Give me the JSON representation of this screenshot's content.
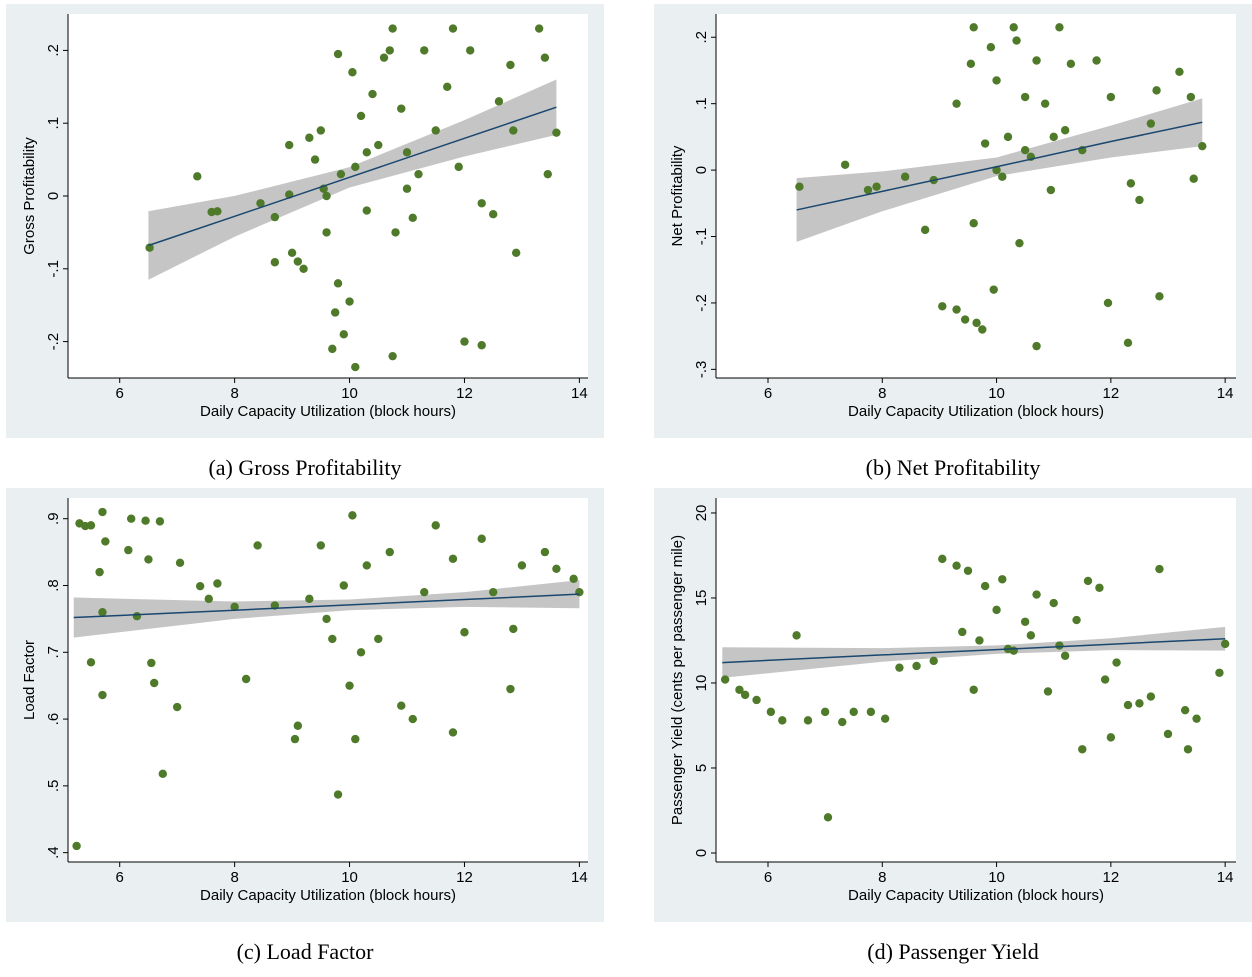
{
  "chart_data": [
    {
      "type": "scatter",
      "caption": "(a) Gross Profitability",
      "x_label": "Daily Capacity Utilization (block hours)",
      "y_label": "Gross Profitability",
      "xlim": [
        5.1,
        14.15
      ],
      "xticks": [
        6,
        8,
        10,
        12,
        14
      ],
      "ylim": [
        -0.25,
        0.25
      ],
      "yticks": [
        {
          "value": -0.2,
          "label": "-.2"
        },
        {
          "value": -0.1,
          "label": "-.1"
        },
        0,
        {
          "value": 0.1,
          "label": ".1"
        },
        {
          "value": 0.2,
          "label": ".2"
        }
      ],
      "series": [
        {
          "color": "#4e7a2a",
          "x": [
            6.52,
            7.35,
            7.6,
            7.7,
            8.45,
            8.7,
            8.7,
            8.95,
            8.95,
            9.0,
            9.1,
            9.2,
            9.3,
            9.4,
            9.5,
            9.55,
            9.6,
            9.7,
            9.75,
            9.8,
            9.8,
            9.85,
            9.9,
            10.0,
            10.05,
            10.1,
            10.1,
            10.2,
            10.3,
            10.4,
            10.5,
            10.6,
            10.7,
            10.8,
            10.75,
            10.9,
            11.0,
            11.1,
            11.2,
            11.3,
            11.5,
            11.7,
            11.8,
            11.9,
            12.0,
            12.1,
            12.3,
            12.3,
            12.5,
            12.6,
            12.8,
            12.85,
            12.9,
            13.3,
            13.4,
            13.45,
            13.6,
            10.75,
            9.6,
            10.3,
            11.0
          ],
          "values": [
            -0.071,
            0.027,
            -0.022,
            -0.021,
            -0.01,
            -0.029,
            -0.091,
            0.07,
            0.002,
            -0.078,
            -0.09,
            -0.1,
            0.08,
            0.05,
            0.09,
            0.01,
            -0.05,
            -0.21,
            -0.16,
            -0.12,
            0.195,
            0.03,
            -0.19,
            -0.145,
            0.17,
            -0.235,
            0.04,
            0.11,
            -0.02,
            0.14,
            0.07,
            0.19,
            0.2,
            -0.05,
            -0.22,
            0.12,
            0.06,
            -0.03,
            0.03,
            0.2,
            0.09,
            0.15,
            0.23,
            0.04,
            -0.2,
            0.2,
            -0.01,
            -0.205,
            -0.025,
            0.13,
            0.18,
            0.09,
            -0.078,
            0.23,
            0.19,
            0.03,
            0.087,
            0.23,
            0.0,
            0.06,
            0.01
          ]
        }
      ],
      "fit": {
        "color": "#1a476f",
        "band_color": "#bfbfbf",
        "x": [
          6.5,
          8,
          10,
          12,
          13.6
        ],
        "values": [
          -0.068,
          -0.0279,
          0.0257,
          0.0792,
          0.122
        ],
        "lower": [
          -0.115,
          -0.0559,
          0.0117,
          0.0542,
          0.084
        ],
        "upper": [
          -0.021,
          0.0001,
          0.0397,
          0.1042,
          0.16
        ]
      }
    },
    {
      "type": "scatter",
      "caption": "(b) Net Profitability",
      "x_label": "Daily Capacity Utilization (block hours)",
      "y_label": "Net Profitability",
      "xlim": [
        5.09,
        14.19
      ],
      "xticks": [
        6,
        8,
        10,
        12,
        14
      ],
      "ylim": [
        -0.313,
        0.235
      ],
      "yticks": [
        {
          "value": -0.3,
          "label": "-.3"
        },
        {
          "value": -0.2,
          "label": "-.2"
        },
        {
          "value": -0.1,
          "label": "-.1"
        },
        0,
        {
          "value": 0.1,
          "label": ".1"
        },
        {
          "value": 0.2,
          "label": ".2"
        }
      ],
      "series": [
        {
          "color": "#4e7a2a",
          "x": [
            6.55,
            7.35,
            7.75,
            7.9,
            8.4,
            8.75,
            8.9,
            9.05,
            9.3,
            9.3,
            9.45,
            9.55,
            9.6,
            9.65,
            9.75,
            9.8,
            9.9,
            9.95,
            10.0,
            10.1,
            10.2,
            10.3,
            10.35,
            10.4,
            10.5,
            10.6,
            10.7,
            10.7,
            10.85,
            10.95,
            11.1,
            11.2,
            11.3,
            11.5,
            11.75,
            11.95,
            12.0,
            12.3,
            12.35,
            12.5,
            12.7,
            12.85,
            12.8,
            13.2,
            13.4,
            13.45,
            13.6,
            10.0,
            10.5,
            11.0,
            9.6
          ],
          "values": [
            -0.025,
            0.008,
            -0.03,
            -0.025,
            -0.01,
            -0.09,
            -0.015,
            -0.205,
            -0.21,
            0.1,
            -0.225,
            0.16,
            0.215,
            -0.23,
            -0.24,
            0.04,
            0.185,
            -0.18,
            0.135,
            -0.01,
            0.05,
            0.215,
            0.195,
            -0.11,
            0.11,
            0.02,
            -0.265,
            0.165,
            0.1,
            -0.03,
            0.215,
            0.06,
            0.16,
            0.03,
            0.165,
            -0.2,
            0.11,
            -0.26,
            -0.02,
            -0.045,
            0.07,
            -0.19,
            0.12,
            0.148,
            0.11,
            -0.013,
            0.036,
            0.0,
            0.03,
            0.05,
            -0.08
          ]
        }
      ],
      "fit": {
        "color": "#1a476f",
        "band_color": "#bfbfbf",
        "x": [
          6.5,
          8,
          10,
          12,
          13.6
        ],
        "values": [
          -0.06,
          -0.032,
          0.005,
          0.043,
          0.072
        ],
        "lower": [
          -0.108,
          -0.062,
          -0.009,
          0.019,
          0.036
        ],
        "upper": [
          -0.012,
          -0.002,
          0.019,
          0.067,
          0.108
        ]
      }
    },
    {
      "type": "scatter",
      "caption": "(c) Load Factor",
      "x_label": "Daily Capacity Utilization (block hours)",
      "y_label": "Load Factor",
      "xlim": [
        5.1,
        14.15
      ],
      "xticks": [
        6,
        8,
        10,
        12,
        14
      ],
      "ylim": [
        0.386,
        0.931
      ],
      "yticks": [
        {
          "value": 0.4,
          "label": ".4"
        },
        {
          "value": 0.5,
          "label": ".5"
        },
        {
          "value": 0.6,
          "label": ".6"
        },
        {
          "value": 0.7,
          "label": ".7"
        },
        {
          "value": 0.8,
          "label": ".8"
        },
        {
          "value": 0.9,
          "label": ".9"
        }
      ],
      "series": [
        {
          "color": "#4e7a2a",
          "x": [
            5.25,
            5.3,
            5.4,
            5.5,
            5.5,
            5.65,
            5.7,
            5.7,
            5.7,
            5.75,
            6.15,
            6.2,
            6.3,
            6.45,
            6.5,
            6.55,
            6.6,
            6.7,
            6.75,
            7.0,
            7.05,
            7.4,
            7.55,
            7.7,
            8.0,
            8.2,
            8.4,
            8.7,
            9.05,
            9.1,
            9.3,
            9.5,
            9.7,
            9.8,
            9.9,
            10.0,
            10.05,
            10.1,
            10.3,
            10.5,
            10.7,
            10.9,
            11.1,
            11.3,
            11.5,
            11.8,
            11.8,
            12.0,
            12.3,
            12.5,
            12.8,
            12.85,
            13.0,
            13.4,
            13.6,
            13.9,
            14.0,
            10.2,
            9.6
          ],
          "values": [
            0.41,
            0.893,
            0.889,
            0.685,
            0.89,
            0.82,
            0.76,
            0.636,
            0.91,
            0.866,
            0.853,
            0.9,
            0.754,
            0.897,
            0.839,
            0.684,
            0.654,
            0.896,
            0.518,
            0.618,
            0.834,
            0.799,
            0.78,
            0.803,
            0.768,
            0.66,
            0.86,
            0.77,
            0.57,
            0.59,
            0.78,
            0.86,
            0.72,
            0.487,
            0.8,
            0.65,
            0.905,
            0.57,
            0.83,
            0.72,
            0.85,
            0.62,
            0.6,
            0.79,
            0.89,
            0.58,
            0.84,
            0.73,
            0.87,
            0.79,
            0.645,
            0.735,
            0.83,
            0.85,
            0.825,
            0.81,
            0.79,
            0.7,
            0.75
          ]
        }
      ],
      "fit": {
        "color": "#1a476f",
        "band_color": "#bfbfbf",
        "x": [
          5.2,
          8,
          10,
          12,
          14
        ],
        "values": [
          0.752,
          0.763,
          0.771,
          0.779,
          0.787
        ],
        "lower": [
          0.722,
          0.75,
          0.763,
          0.768,
          0.766
        ],
        "upper": [
          0.782,
          0.776,
          0.779,
          0.79,
          0.808
        ]
      }
    },
    {
      "type": "scatter",
      "caption": "(d) Passenger Yield",
      "x_label": "Daily Capacity Utilization (block hours)",
      "y_label": "Passenger Yield (cents per passenger mile)",
      "xlim": [
        5.09,
        14.19
      ],
      "xticks": [
        6,
        8,
        10,
        12,
        14
      ],
      "ylim": [
        -0.53,
        20.88
      ],
      "yticks": [
        0,
        5,
        10,
        15,
        20
      ],
      "series": [
        {
          "color": "#4e7a2a",
          "x": [
            5.25,
            5.5,
            5.6,
            5.8,
            6.05,
            6.25,
            6.5,
            6.7,
            7.0,
            7.05,
            7.3,
            7.5,
            7.8,
            8.05,
            8.3,
            8.6,
            8.9,
            9.05,
            9.3,
            9.4,
            9.5,
            9.6,
            9.8,
            10.0,
            10.1,
            10.3,
            10.5,
            10.7,
            10.9,
            11.0,
            11.2,
            11.4,
            11.5,
            11.6,
            11.8,
            11.9,
            12.0,
            12.1,
            12.3,
            12.5,
            12.7,
            12.85,
            13.0,
            13.3,
            13.35,
            13.5,
            13.9,
            14.0,
            9.7,
            10.2,
            10.6,
            11.1
          ],
          "values": [
            10.2,
            9.6,
            9.3,
            9.0,
            8.3,
            7.8,
            12.8,
            7.8,
            8.3,
            2.1,
            7.7,
            8.3,
            8.3,
            7.9,
            10.9,
            11.0,
            11.3,
            17.3,
            16.9,
            13.0,
            16.6,
            9.6,
            15.7,
            14.3,
            16.1,
            11.9,
            13.6,
            15.2,
            9.5,
            14.7,
            11.6,
            13.7,
            6.1,
            16.0,
            15.6,
            10.2,
            6.8,
            11.2,
            8.7,
            8.8,
            9.2,
            16.7,
            7.0,
            8.4,
            6.1,
            7.9,
            10.6,
            12.3,
            12.5,
            12.0,
            12.8,
            12.2
          ]
        }
      ],
      "fit": {
        "color": "#1a476f",
        "band_color": "#bfbfbf",
        "x": [
          5.2,
          8,
          10,
          12,
          14
        ],
        "values": [
          11.2,
          11.65,
          11.96,
          12.28,
          12.6
        ],
        "lower": [
          10.3,
          11.25,
          11.71,
          11.93,
          11.9
        ],
        "upper": [
          12.1,
          12.05,
          12.21,
          12.63,
          13.3
        ]
      }
    }
  ]
}
